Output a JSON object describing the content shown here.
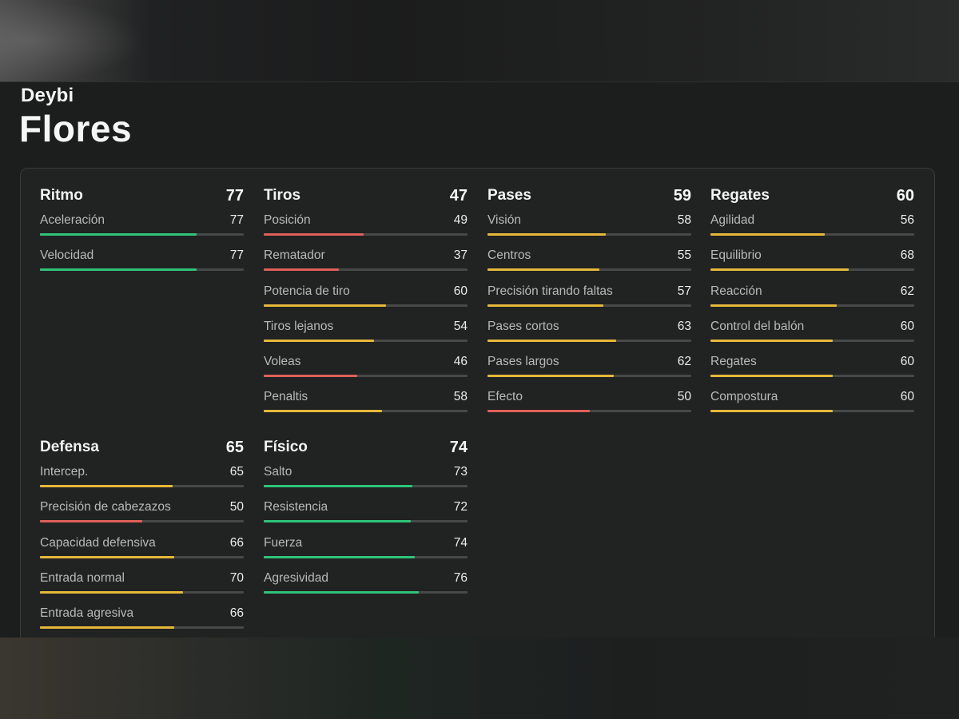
{
  "player": {
    "first_name": "Deybi",
    "last_name": "Flores"
  },
  "colors": {
    "high": "#2fc47a",
    "mid": "#e6b83a",
    "low": "#e0605a"
  },
  "categories": [
    {
      "name": "Ritmo",
      "value": "77",
      "stats": [
        {
          "label": "Aceleración",
          "value": "77",
          "level": "high"
        },
        {
          "label": "Velocidad",
          "value": "77",
          "level": "high"
        }
      ]
    },
    {
      "name": "Tiros",
      "value": "47",
      "stats": [
        {
          "label": "Posición",
          "value": "49",
          "level": "low"
        },
        {
          "label": "Rematador",
          "value": "37",
          "level": "low"
        },
        {
          "label": "Potencia de tiro",
          "value": "60",
          "level": "mid"
        },
        {
          "label": "Tiros lejanos",
          "value": "54",
          "level": "mid"
        },
        {
          "label": "Voleas",
          "value": "46",
          "level": "low"
        },
        {
          "label": "Penaltis",
          "value": "58",
          "level": "mid"
        }
      ]
    },
    {
      "name": "Pases",
      "value": "59",
      "stats": [
        {
          "label": "Visión",
          "value": "58",
          "level": "mid"
        },
        {
          "label": "Centros",
          "value": "55",
          "level": "mid"
        },
        {
          "label": "Precisión tirando faltas",
          "value": "57",
          "level": "mid"
        },
        {
          "label": "Pases cortos",
          "value": "63",
          "level": "mid"
        },
        {
          "label": "Pases largos",
          "value": "62",
          "level": "mid"
        },
        {
          "label": "Efecto",
          "value": "50",
          "level": "low"
        }
      ]
    },
    {
      "name": "Regates",
      "value": "60",
      "stats": [
        {
          "label": "Agilidad",
          "value": "56",
          "level": "mid"
        },
        {
          "label": "Equilibrio",
          "value": "68",
          "level": "mid"
        },
        {
          "label": "Reacción",
          "value": "62",
          "level": "mid"
        },
        {
          "label": "Control del balón",
          "value": "60",
          "level": "mid"
        },
        {
          "label": "Regates",
          "value": "60",
          "level": "mid"
        },
        {
          "label": "Compostura",
          "value": "60",
          "level": "mid"
        }
      ]
    },
    {
      "name": "Defensa",
      "value": "65",
      "stats": [
        {
          "label": "Intercep.",
          "value": "65",
          "level": "mid"
        },
        {
          "label": "Precisión de cabezazos",
          "value": "50",
          "level": "low"
        },
        {
          "label": "Capacidad defensiva",
          "value": "66",
          "level": "mid"
        },
        {
          "label": "Entrada normal",
          "value": "70",
          "level": "mid"
        },
        {
          "label": "Entrada agresiva",
          "value": "66",
          "level": "mid"
        }
      ]
    },
    {
      "name": "Físico",
      "value": "74",
      "stats": [
        {
          "label": "Salto",
          "value": "73",
          "level": "high"
        },
        {
          "label": "Resistencia",
          "value": "72",
          "level": "high"
        },
        {
          "label": "Fuerza",
          "value": "74",
          "level": "high"
        },
        {
          "label": "Agresividad",
          "value": "76",
          "level": "high"
        }
      ]
    }
  ]
}
